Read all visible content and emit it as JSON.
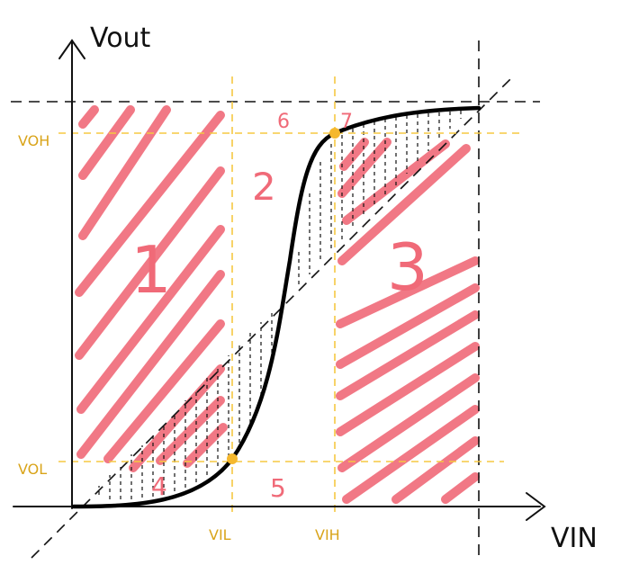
{
  "diagram": {
    "y_axis_label": "Vout",
    "x_axis_label": "VIN",
    "threshold_labels": {
      "voh": "VOH",
      "vol": "VOL",
      "vil": "VIL",
      "vih": "VIH"
    },
    "region_labels": {
      "r1": "1",
      "r2": "2",
      "r3": "3",
      "r4": "4",
      "r5": "5",
      "r6": "6",
      "r7": "7"
    },
    "colors": {
      "curve": "#000000",
      "guides": "#f5c842",
      "hatch": "#f06a78",
      "points": "#f5b82e",
      "axes": "#000000"
    }
  }
}
